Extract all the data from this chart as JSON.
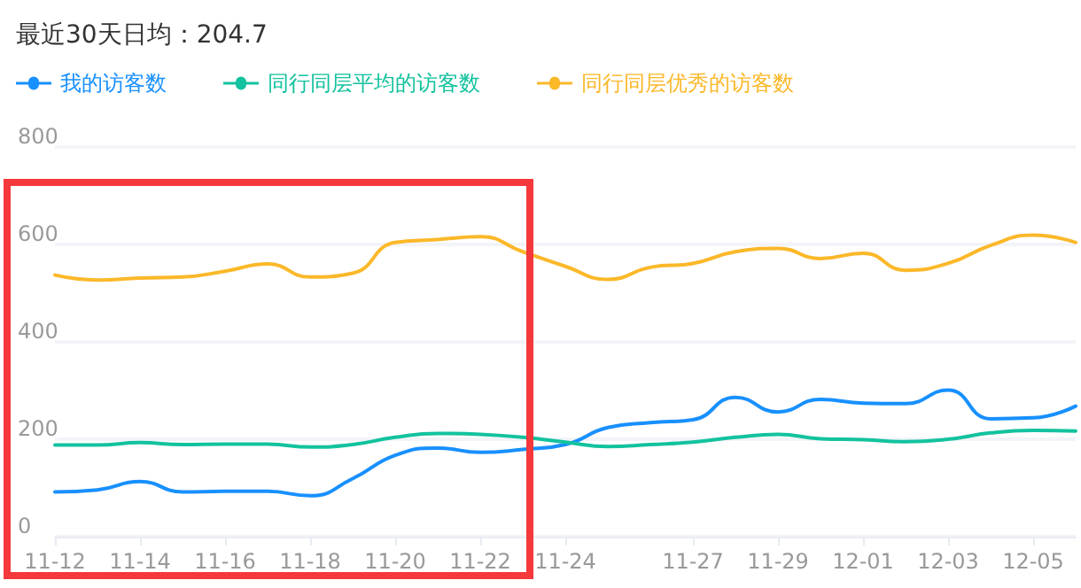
{
  "chart_data": {
    "type": "line",
    "title": "最近30天日均：204.7",
    "categories": [
      "11-12",
      null,
      "11-14",
      null,
      "11-16",
      null,
      "11-18",
      null,
      "11-20",
      null,
      "11-22",
      null,
      "11-24",
      null,
      null,
      "11-27",
      null,
      "11-29",
      null,
      "12-01",
      null,
      "12-03",
      null,
      "12-05",
      null
    ],
    "series": [
      {
        "name": "我的访客数",
        "color": "#1890ff",
        "values": [
          92,
          96,
          113,
          92,
          93,
          93,
          84,
          119,
          167,
          182,
          173,
          179,
          189,
          224,
          234,
          240,
          286,
          256,
          282,
          274,
          273,
          301,
          242,
          244,
          268
        ]
      },
      {
        "name": "同行同层平均的访客数",
        "color": "#13c29e",
        "values": [
          188,
          188,
          193,
          189,
          190,
          190,
          184,
          189,
          204,
          212,
          210,
          204,
          194,
          185,
          189,
          194,
          204,
          210,
          201,
          199,
          195,
          200,
          213,
          218,
          217
        ]
      },
      {
        "name": "同行同层优秀的访客数",
        "color": "#fbb829",
        "values": [
          537,
          527,
          531,
          533,
          545,
          560,
          533,
          541,
          604,
          610,
          616,
          585,
          555,
          528,
          553,
          561,
          585,
          592,
          571,
          582,
          547,
          561,
          598,
          619,
          604
        ]
      }
    ],
    "ylim": [
      0,
      800
    ],
    "yticks": [
      0,
      200,
      400,
      600,
      800
    ],
    "grid": "y",
    "legend": "top left",
    "marker": "none",
    "line_style": "solid"
  }
}
